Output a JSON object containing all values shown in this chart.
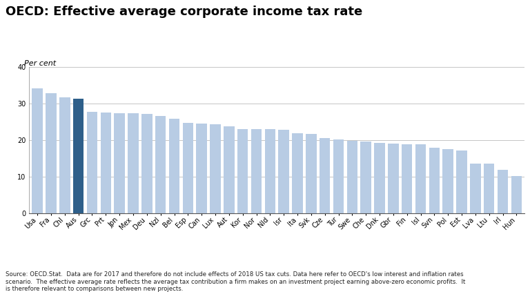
{
  "title": "OECD: Effective average corporate income tax rate",
  "ylabel": "Per cent",
  "categories": [
    "Usa",
    "Fra",
    "Chl",
    "Aus",
    "Grc",
    "Prt",
    "Jpn",
    "Mex",
    "Deu",
    "Nzl",
    "Bel",
    "Esp",
    "Can",
    "Lux",
    "Aut",
    "Kor",
    "Nor",
    "Nld",
    "Isr",
    "Ita",
    "Svk",
    "Cze",
    "Tur",
    "Swe",
    "Che",
    "Dnk",
    "Gbr",
    "Fin",
    "Isl",
    "Svn",
    "Pol",
    "Est",
    "Lva",
    "Ltu",
    "Irl",
    "Hun"
  ],
  "values": [
    34.2,
    32.9,
    31.7,
    31.4,
    27.7,
    27.5,
    27.4,
    27.3,
    27.2,
    26.6,
    25.8,
    24.8,
    24.5,
    24.3,
    23.7,
    23.1,
    23.0,
    23.0,
    22.9,
    21.9,
    21.7,
    20.6,
    20.2,
    19.9,
    19.6,
    19.3,
    19.1,
    18.9,
    18.8,
    17.9,
    17.5,
    17.1,
    13.6,
    13.5,
    11.9,
    10.2
  ],
  "bar_colors_default": "#b8cce4",
  "bar_color_highlight": "#2e5f8a",
  "highlight_index": 3,
  "ylim": [
    0,
    40
  ],
  "yticks": [
    0,
    10,
    20,
    30,
    40
  ],
  "source_text": "Source: OECD.Stat.  Data are for 2017 and therefore do not include effects of 2018 US tax cuts. Data here refer to OECD's low interest and inflation rates\nscenario.  The effective average rate reflects the average tax contribution a firm makes on an investment project earning above-zero economic profits.  It\nis therefore relevant to comparisons between new projects.",
  "background_color": "#ffffff",
  "grid_color": "#bbbbbb",
  "title_fontsize": 13,
  "label_fontsize": 7,
  "ylabel_fontsize": 8,
  "source_fontsize": 6.2
}
